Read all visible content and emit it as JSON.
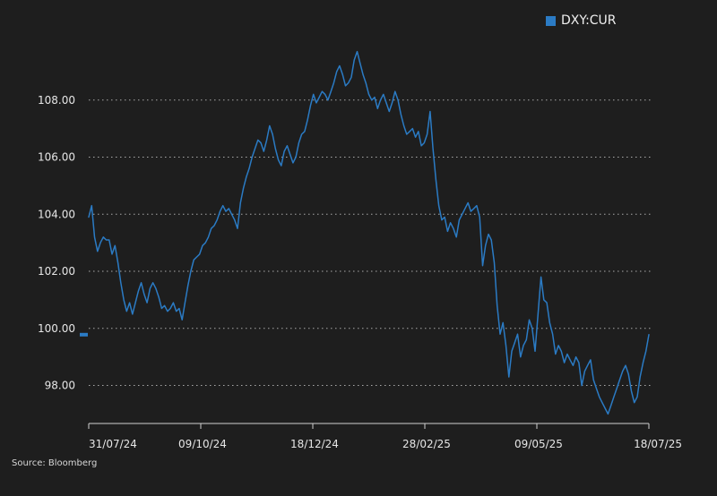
{
  "legend": {
    "label": "DXY:CUR",
    "color": "#2b7bc4"
  },
  "source_text": "Source: Bloomberg",
  "colors": {
    "background": "#1e1e1e",
    "line": "#2b7bc4",
    "grid": "#d8d8d8",
    "text": "#e6e6e6"
  },
  "chart_data": {
    "type": "line",
    "title": "",
    "xlabel": "",
    "ylabel": "",
    "ylim": [
      96.7,
      110.0
    ],
    "grid": "horizontal dotted",
    "legend_position": "top-right",
    "y_ticks": [
      98,
      100,
      102,
      104,
      106,
      108
    ],
    "y_tick_labels": [
      "98.00",
      "100.00",
      "102.00",
      "104.00",
      "106.00",
      "108.00"
    ],
    "x_tick_labels": [
      "31/07/24",
      "09/10/24",
      "18/12/24",
      "28/02/25",
      "09/05/25",
      "18/07/25"
    ],
    "last_value_marker": 99.78,
    "series": [
      {
        "name": "DXY:CUR",
        "values": [
          103.9,
          104.3,
          103.2,
          102.7,
          103.0,
          103.2,
          103.1,
          103.1,
          102.6,
          102.9,
          102.3,
          101.6,
          101.0,
          100.6,
          100.9,
          100.5,
          100.9,
          101.3,
          101.6,
          101.2,
          100.9,
          101.4,
          101.6,
          101.4,
          101.1,
          100.7,
          100.8,
          100.6,
          100.7,
          100.9,
          100.6,
          100.7,
          100.3,
          100.9,
          101.5,
          102.0,
          102.4,
          102.5,
          102.6,
          102.9,
          103.0,
          103.2,
          103.5,
          103.6,
          103.8,
          104.1,
          104.3,
          104.1,
          104.2,
          104.0,
          103.8,
          103.5,
          104.4,
          104.9,
          105.3,
          105.6,
          106.0,
          106.3,
          106.6,
          106.5,
          106.2,
          106.6,
          107.1,
          106.8,
          106.3,
          105.9,
          105.7,
          106.2,
          106.4,
          106.1,
          105.8,
          106.0,
          106.5,
          106.8,
          106.9,
          107.3,
          107.8,
          108.2,
          107.9,
          108.1,
          108.3,
          108.2,
          108.0,
          108.3,
          108.6,
          109.0,
          109.2,
          108.9,
          108.5,
          108.6,
          108.8,
          109.4,
          109.7,
          109.3,
          108.9,
          108.6,
          108.2,
          108.0,
          108.1,
          107.7,
          108.0,
          108.2,
          107.9,
          107.6,
          107.9,
          108.3,
          108.0,
          107.5,
          107.1,
          106.8,
          106.9,
          107.0,
          106.7,
          106.9,
          106.4,
          106.5,
          106.8,
          107.6,
          106.3,
          105.2,
          104.3,
          103.8,
          103.9,
          103.4,
          103.7,
          103.5,
          103.2,
          103.8,
          104.0,
          104.2,
          104.4,
          104.1,
          104.2,
          104.3,
          103.9,
          102.2,
          102.9,
          103.3,
          103.1,
          102.3,
          100.8,
          99.8,
          100.2,
          99.4,
          98.3,
          99.2,
          99.5,
          99.8,
          99.0,
          99.4,
          99.6,
          100.3,
          100.0,
          99.2,
          100.5,
          101.8,
          101.0,
          100.9,
          100.2,
          99.8,
          99.1,
          99.4,
          99.2,
          98.8,
          99.1,
          98.9,
          98.7,
          99.0,
          98.8,
          98.0,
          98.5,
          98.7,
          98.9,
          98.2,
          97.9,
          97.6,
          97.4,
          97.2,
          97.0,
          97.3,
          97.6,
          97.9,
          98.2,
          98.5,
          98.7,
          98.4,
          97.8,
          97.4,
          97.6,
          98.3,
          98.8,
          99.2,
          99.78
        ]
      }
    ]
  }
}
